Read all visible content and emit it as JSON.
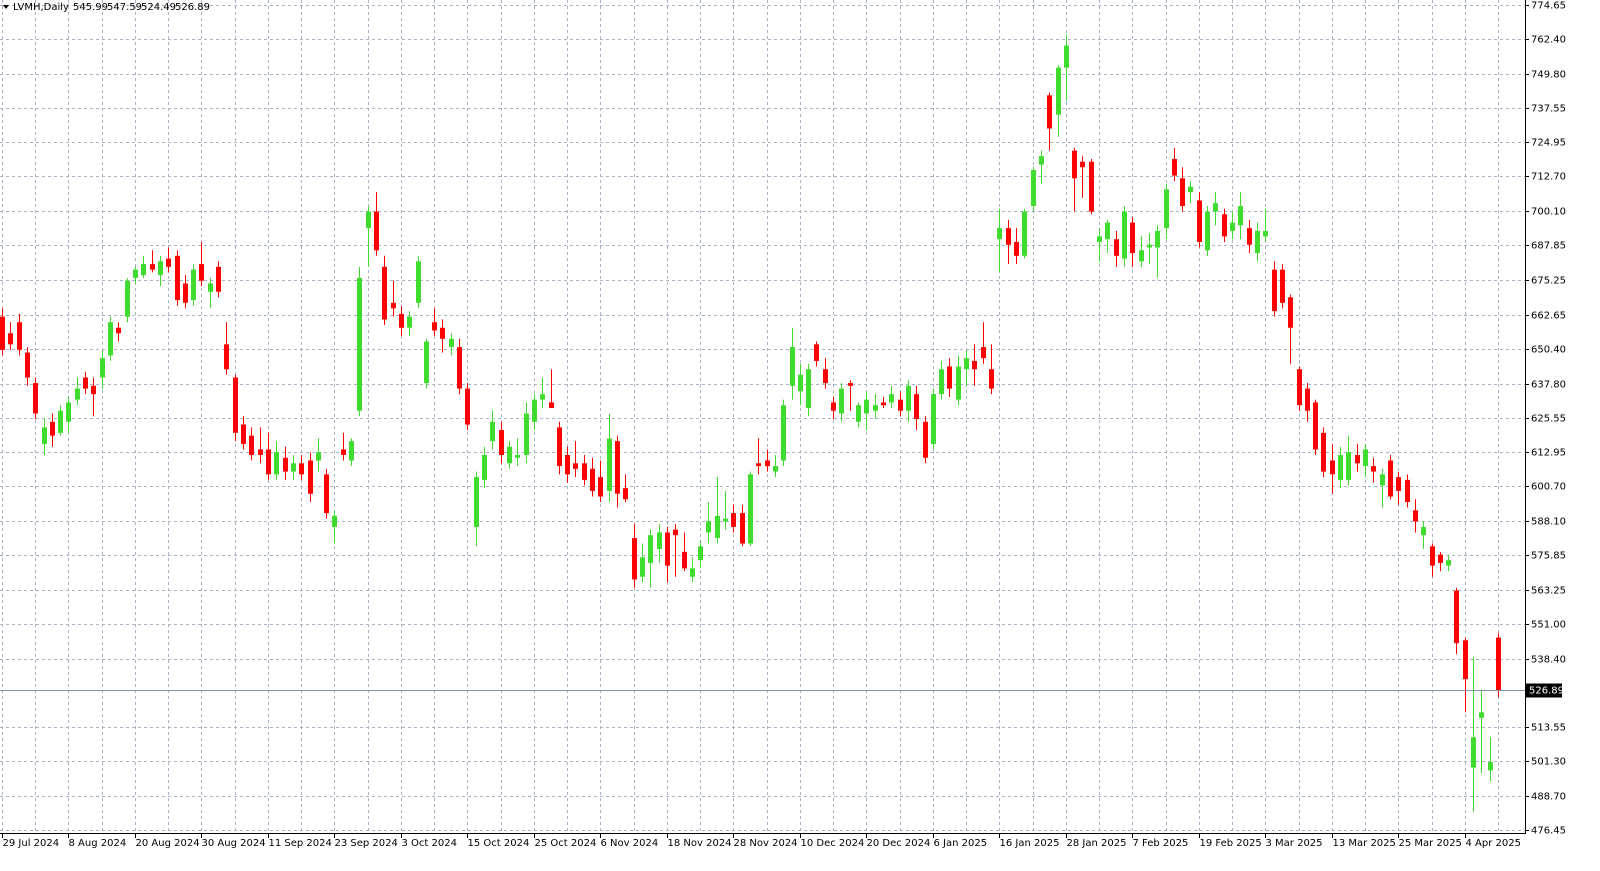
{
  "chart_data": {
    "type": "candlestick",
    "title": "LVMH,Daily",
    "categories": [
      "29 Jul 2024",
      null,
      null,
      null,
      null,
      null,
      null,
      null,
      "8 Aug 2024",
      null,
      null,
      null,
      null,
      null,
      null,
      null,
      "20 Aug 2024",
      null,
      null,
      null,
      null,
      null,
      null,
      null,
      "30 Aug 2024",
      null,
      null,
      null,
      null,
      null,
      null,
      null,
      "11 Sep 2024",
      null,
      null,
      null,
      null,
      null,
      null,
      null,
      "23 Sep 2024",
      null,
      null,
      null,
      null,
      null,
      null,
      null,
      "3 Oct 2024",
      null,
      null,
      null,
      null,
      null,
      null,
      null,
      "15 Oct 2024",
      null,
      null,
      null,
      null,
      null,
      null,
      null,
      "25 Oct 2024",
      null,
      null,
      null,
      null,
      null,
      null,
      null,
      "6 Nov 2024",
      null,
      null,
      null,
      null,
      null,
      null,
      null,
      "18 Nov 2024",
      null,
      null,
      null,
      null,
      null,
      null,
      null,
      "28 Nov 2024",
      null,
      null,
      null,
      null,
      null,
      null,
      null,
      "10 Dec 2024",
      null,
      null,
      null,
      null,
      null,
      null,
      null,
      "20 Dec 2024",
      null,
      null,
      null,
      null,
      null,
      null,
      null,
      "6 Jan 2025",
      null,
      null,
      null,
      null,
      null,
      null,
      null,
      "16 Jan 2025",
      null,
      null,
      null,
      null,
      null,
      null,
      null,
      "28 Jan 2025",
      null,
      null,
      null,
      null,
      null,
      null,
      null,
      "7 Feb 2025",
      null,
      null,
      null,
      null,
      null,
      null,
      null,
      "19 Feb 2025",
      null,
      null,
      null,
      null,
      null,
      null,
      null,
      "3 Mar 2025",
      null,
      null,
      null,
      null,
      null,
      null,
      null,
      "13 Mar 2025",
      null,
      null,
      null,
      null,
      null,
      null,
      null,
      "25 Mar 2025",
      null,
      null,
      null,
      null,
      null,
      null,
      null,
      "4 Apr 2025",
      null,
      null,
      null,
      null
    ],
    "open": [
      662,
      656,
      660,
      649,
      638,
      616,
      624,
      620,
      624,
      632,
      640,
      637,
      640,
      648,
      658,
      662,
      676,
      677,
      681,
      677,
      683,
      684,
      674,
      668,
      681,
      671,
      680,
      652,
      640,
      623,
      619,
      614,
      614,
      605,
      611,
      606,
      609,
      610,
      610,
      605,
      586,
      614,
      610,
      628,
      694,
      700,
      680,
      667,
      663,
      658,
      667,
      638,
      660,
      658,
      651,
      651,
      636,
      586,
      603,
      617,
      621,
      609,
      611,
      612,
      624,
      632,
      631,
      622,
      612,
      609,
      609,
      607,
      604,
      599,
      617,
      600,
      582,
      568,
      573,
      578,
      584,
      585,
      577,
      568,
      574,
      584,
      582,
      588,
      591,
      591,
      580,
      609,
      610,
      606,
      610,
      637,
      635,
      629,
      652,
      643,
      631,
      627,
      638,
      624,
      627,
      628,
      631,
      631,
      632,
      628,
      634,
      624,
      616,
      634,
      644,
      632,
      643,
      646,
      651,
      643,
      690,
      694,
      689,
      684,
      702,
      717,
      742,
      735,
      752,
      722,
      718,
      718,
      689,
      690,
      690,
      683,
      696,
      682,
      687,
      687,
      694,
      719,
      712,
      707,
      704,
      686,
      700,
      699,
      693,
      695,
      694,
      685,
      691,
      679,
      679,
      669,
      643,
      636,
      631,
      620,
      610,
      603,
      603,
      612,
      608,
      608,
      601,
      610,
      604,
      603,
      592,
      583,
      579,
      576,
      572,
      563,
      545,
      499,
      517,
      498,
      545.99
    ],
    "high": [
      665,
      660,
      663,
      651,
      640,
      625,
      627,
      630,
      633,
      640,
      642,
      640,
      650,
      662,
      660,
      676,
      680,
      684,
      686,
      684,
      687,
      686,
      677,
      681,
      689,
      676,
      682,
      660,
      641,
      626,
      622,
      622,
      620,
      617,
      615,
      612,
      612,
      613,
      618,
      607,
      592,
      620,
      618,
      680,
      702,
      707,
      684,
      675,
      666,
      664,
      684,
      654,
      665,
      661,
      656,
      654,
      638,
      606,
      615,
      628,
      624,
      617,
      618,
      631,
      634,
      640,
      643,
      624,
      615,
      617,
      612,
      611,
      610,
      627,
      619,
      605,
      587,
      580,
      585,
      587,
      586,
      587,
      584,
      575,
      581,
      595,
      604,
      599,
      594,
      594,
      606,
      618,
      614,
      612,
      632,
      658,
      645,
      645,
      653,
      647,
      633,
      638,
      639,
      631,
      635,
      634,
      633,
      637,
      635,
      639,
      637,
      626,
      636,
      646,
      647,
      648,
      650,
      652,
      660,
      652,
      701,
      697,
      694,
      701,
      716,
      722,
      743,
      753,
      764,
      723,
      720,
      719,
      694,
      697,
      693,
      702,
      698,
      691,
      692,
      695,
      710,
      723,
      716,
      711,
      707,
      702,
      707,
      701,
      700,
      707,
      697,
      696,
      701,
      682,
      681,
      670,
      644,
      638,
      632,
      622,
      616,
      615,
      619,
      616,
      616,
      611,
      607,
      612,
      606,
      605,
      596,
      588,
      580,
      577,
      576,
      564,
      546,
      539,
      527,
      510,
      547.59
    ],
    "low": [
      648,
      650,
      648,
      637,
      625,
      612,
      615,
      619,
      620,
      630,
      634,
      626,
      636,
      646,
      653,
      660,
      674,
      676,
      678,
      673,
      678,
      666,
      665,
      666,
      673,
      665,
      669,
      641,
      617,
      614,
      610,
      609,
      603,
      603,
      603,
      603,
      603,
      595,
      606,
      589,
      580,
      610,
      608,
      626,
      680,
      684,
      659,
      662,
      655,
      655,
      665,
      636,
      655,
      649,
      648,
      634,
      621,
      579,
      600,
      614,
      609,
      607,
      608,
      609,
      621,
      629,
      629,
      605,
      602,
      604,
      601,
      597,
      595,
      595,
      593,
      595,
      564,
      566,
      564,
      573,
      566,
      568,
      570,
      566,
      571,
      580,
      580,
      585,
      584,
      579,
      579,
      605,
      606,
      604,
      608,
      632,
      630,
      626,
      644,
      636,
      625,
      624,
      628,
      622,
      621,
      625,
      629,
      629,
      626,
      624,
      621,
      609,
      614,
      632,
      633,
      630,
      637,
      637,
      645,
      634,
      678,
      681,
      681,
      683,
      700,
      710,
      722,
      727,
      740,
      700,
      705,
      699,
      682,
      685,
      680,
      680,
      680,
      680,
      681,
      676,
      690,
      711,
      700,
      703,
      687,
      684,
      695,
      689,
      690,
      690,
      685,
      682,
      689,
      662,
      665,
      645,
      628,
      624,
      612,
      604,
      598,
      600,
      601,
      606,
      604,
      602,
      593,
      596,
      594,
      593,
      584,
      578,
      568,
      570,
      570,
      540,
      519,
      483,
      497,
      494,
      524.49
    ],
    "close": [
      650,
      652,
      650,
      640,
      627,
      622,
      619,
      628,
      631,
      636,
      636,
      634,
      647,
      660,
      656,
      675,
      679,
      681,
      679,
      682,
      680,
      668,
      667,
      679,
      675,
      674,
      671,
      643,
      620,
      616,
      612,
      612,
      605,
      613,
      606,
      609,
      605,
      598,
      613,
      591,
      590,
      612,
      617,
      676,
      700,
      686,
      661,
      665,
      658,
      662,
      682,
      653,
      657,
      654,
      654,
      636,
      623,
      604,
      612,
      624,
      612,
      615,
      612,
      627,
      632,
      634,
      629,
      608,
      605,
      607,
      603,
      599,
      597,
      618,
      598,
      596,
      567,
      575,
      583,
      584,
      572,
      583,
      571,
      571,
      579,
      588,
      590,
      589,
      586,
      580,
      605,
      608,
      608,
      608,
      630,
      651,
      641,
      643,
      646,
      638,
      628,
      636,
      637,
      630,
      632,
      630,
      630,
      634,
      628,
      637,
      625,
      611,
      634,
      643,
      636,
      644,
      647,
      643,
      647,
      636,
      694,
      688,
      684,
      700,
      715,
      720,
      730,
      752,
      760,
      712,
      716,
      700,
      691,
      696,
      684,
      700,
      685,
      686,
      688,
      693,
      708,
      713,
      702,
      709,
      689,
      700,
      703,
      691,
      696,
      702,
      688,
      693,
      693,
      664,
      667,
      658,
      630,
      628,
      614,
      606,
      605,
      612,
      613,
      609,
      614,
      606,
      605,
      597,
      599,
      595,
      588,
      586,
      572,
      573,
      574,
      544,
      531,
      510,
      519,
      501,
      526.89
    ],
    "up_color": "#3fdc2f",
    "down_color": "#ff0000",
    "ylim": [
      476.45,
      774.65
    ],
    "yticks": [
      774.65,
      {
        "value": 762.4,
        "label": "762.40"
      },
      {
        "value": 749.8,
        "label": "749.80"
      },
      737.55,
      724.95,
      {
        "value": 712.7,
        "label": "712.70"
      },
      {
        "value": 700.1,
        "label": "700.10"
      },
      687.85,
      675.25,
      662.65,
      {
        "value": 650.4,
        "label": "650.40"
      },
      {
        "value": 637.8,
        "label": "637.80"
      },
      625.55,
      612.95,
      {
        "value": 600.7,
        "label": "600.70"
      },
      {
        "value": 588.1,
        "label": "588.10"
      },
      575.85,
      563.25,
      {
        "value": 551,
        "label": "551.00"
      },
      {
        "value": 538.4,
        "label": "538.40"
      },
      513.55,
      {
        "value": 501.3,
        "label": "501.30"
      },
      {
        "value": 488.7,
        "label": "488.70"
      },
      476.45
    ],
    "grid": true
  }
}
